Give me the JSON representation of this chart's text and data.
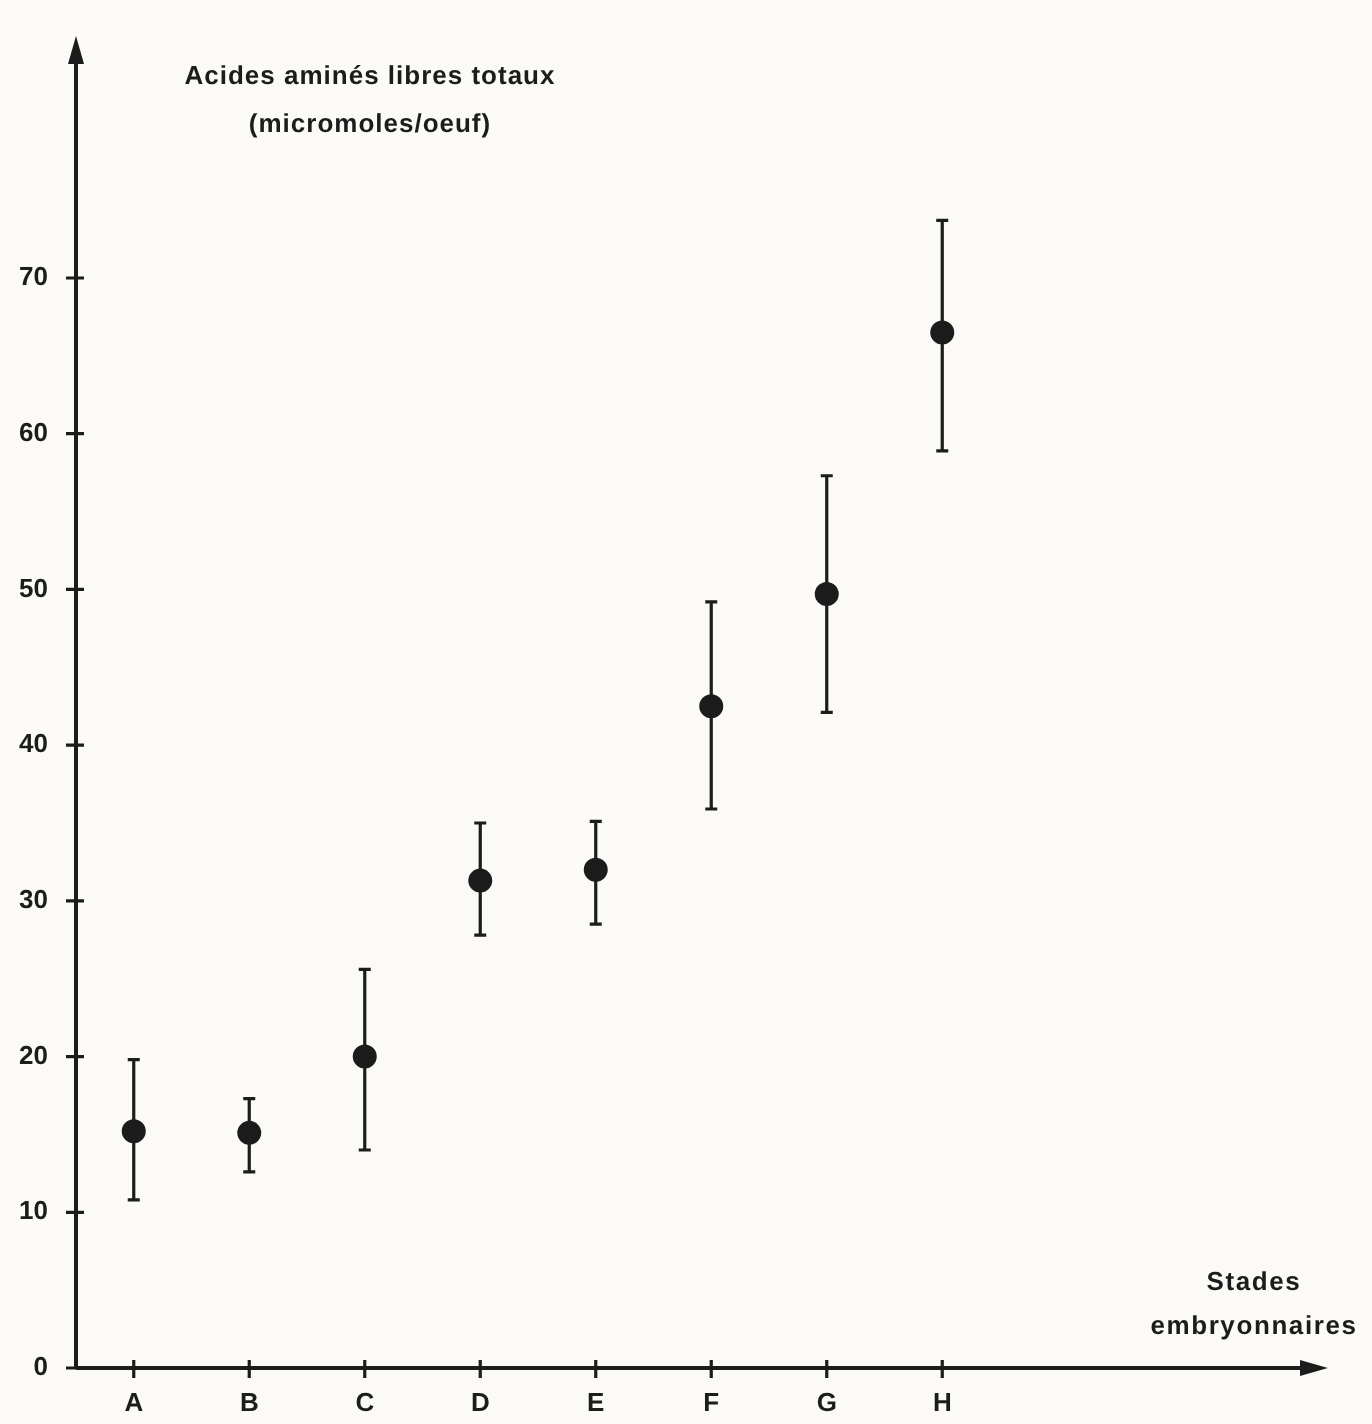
{
  "chart_data": {
    "type": "scatter",
    "ylabel": "Acides aminés libres totaux (micromoles/oeuf)",
    "annotations": [
      "Stades embryonnaires"
    ],
    "categories": [
      "A",
      "B",
      "C",
      "D",
      "E",
      "F",
      "G",
      "H"
    ],
    "values": [
      15.2,
      15.1,
      20.0,
      31.3,
      32.0,
      42.5,
      49.7,
      66.5
    ],
    "errors": [
      [
        10.8,
        19.8
      ],
      [
        12.6,
        17.3
      ],
      [
        14.0,
        25.6
      ],
      [
        27.8,
        35.0
      ],
      [
        28.5,
        35.1
      ],
      [
        35.9,
        49.2
      ],
      [
        42.1,
        57.3
      ],
      [
        58.9,
        73.7
      ]
    ],
    "color": "#1c1c1c",
    "marker": "circle",
    "ylim": [
      0,
      84
    ],
    "yticks": [
      0,
      10,
      20,
      30,
      40,
      50,
      60,
      70
    ]
  }
}
